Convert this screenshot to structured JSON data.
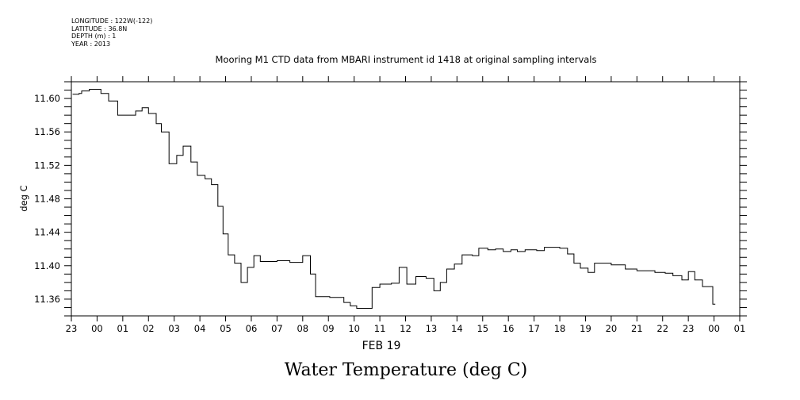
{
  "header": {
    "longitude": "LONGITUDE : 122W(-122)",
    "latitude": "LATITUDE : 36.8N",
    "depth": "DEPTH (m) : 1",
    "year": "YEAR : 2013"
  },
  "chart_data": {
    "type": "line",
    "title": "Mooring M1 CTD data from MBARI instrument id 1418 at original sampling intervals",
    "caption": "Water Temperature (deg C)",
    "ylabel": "deg C",
    "xlabel_date": "FEB 19",
    "ylim": [
      11.34,
      11.62
    ],
    "yticks": [
      "11.36",
      "11.40",
      "11.44",
      "11.48",
      "11.52",
      "11.56",
      "11.60"
    ],
    "xlim": [
      -1,
      25
    ],
    "xticks": [
      "23",
      "00",
      "01",
      "02",
      "03",
      "04",
      "05",
      "06",
      "07",
      "08",
      "09",
      "10",
      "11",
      "12",
      "13",
      "14",
      "15",
      "16",
      "17",
      "18",
      "19",
      "20",
      "21",
      "22",
      "23",
      "00",
      "01"
    ],
    "grid": false,
    "step": true,
    "series": [
      {
        "x": [
          -0.95,
          -0.7,
          -0.6,
          -0.3,
          -0.1,
          0.1,
          0.15,
          0.45,
          0.8,
          1.25,
          1.5,
          1.75,
          2.0,
          2.3,
          2.5,
          2.8,
          3.1,
          3.35,
          3.65,
          3.9,
          4.2,
          4.45,
          4.7,
          4.9,
          5.1,
          5.35,
          5.6,
          5.85,
          6.1,
          6.35,
          6.7,
          7.0,
          7.5,
          8.0,
          8.3,
          8.5,
          8.75,
          9.05,
          9.6,
          9.85,
          10.1,
          10.4,
          10.7,
          11.0,
          11.45,
          11.75,
          12.05,
          12.4,
          12.8,
          13.1,
          13.35,
          13.6,
          13.9,
          14.2,
          14.6,
          14.85,
          15.2,
          15.5,
          15.8,
          16.1,
          16.35,
          16.65,
          17.1,
          17.4,
          18.0,
          18.3,
          18.55,
          18.8,
          19.1,
          19.35,
          20.0,
          20.55,
          21.0,
          21.7,
          22.1,
          22.4,
          22.75,
          23.0,
          23.25,
          23.55,
          23.95
        ],
        "y": [
          11.605,
          11.606,
          11.609,
          11.611,
          11.611,
          11.611,
          11.606,
          11.597,
          11.58,
          11.58,
          11.585,
          11.589,
          11.582,
          11.57,
          11.56,
          11.522,
          11.532,
          11.543,
          11.524,
          11.508,
          11.504,
          11.497,
          11.471,
          11.438,
          11.413,
          11.403,
          11.38,
          11.398,
          11.412,
          11.405,
          11.405,
          11.406,
          11.404,
          11.412,
          11.39,
          11.363,
          11.363,
          11.362,
          11.356,
          11.352,
          11.349,
          11.349,
          11.374,
          11.378,
          11.379,
          11.398,
          11.378,
          11.387,
          11.385,
          11.37,
          11.38,
          11.396,
          11.402,
          11.413,
          11.412,
          11.421,
          11.419,
          11.42,
          11.417,
          11.419,
          11.417,
          11.419,
          11.418,
          11.422,
          11.421,
          11.414,
          11.403,
          11.397,
          11.392,
          11.403,
          11.401,
          11.396,
          11.394,
          11.392,
          11.391,
          11.388,
          11.383,
          11.393,
          11.383,
          11.375,
          11.354
        ]
      }
    ]
  }
}
